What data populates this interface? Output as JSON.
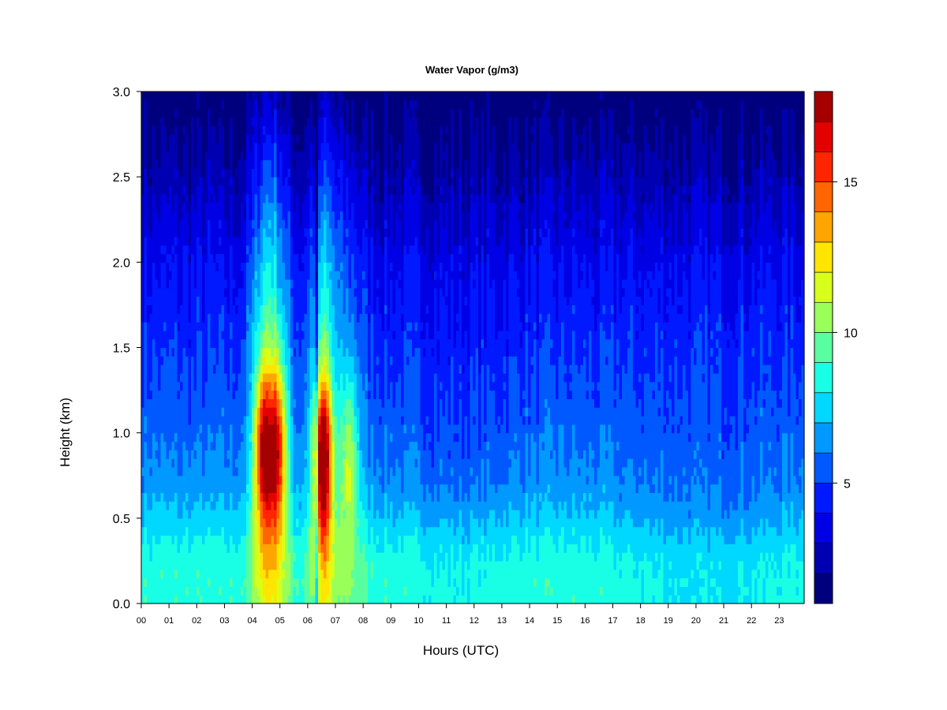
{
  "chart_data": {
    "type": "heatmap",
    "title": "Water Vapor (g/m3)",
    "xlabel": "Hours (UTC)",
    "ylabel": "Height (km)",
    "xlim": [
      0,
      23.9
    ],
    "ylim": [
      0,
      3.0
    ],
    "x_ticks": [
      0,
      1,
      2,
      3,
      4,
      5,
      6,
      7,
      8,
      9,
      10,
      11,
      12,
      13,
      14,
      15,
      16,
      17,
      18,
      19,
      20,
      21,
      22,
      23
    ],
    "x_tick_labels": [
      "00",
      "01",
      "02",
      "03",
      "04",
      "05",
      "06",
      "07",
      "08",
      "09",
      "10",
      "11",
      "12",
      "13",
      "14",
      "15",
      "16",
      "17",
      "18",
      "19",
      "20",
      "21",
      "22",
      "23"
    ],
    "y_ticks": [
      0.0,
      0.5,
      1.0,
      1.5,
      2.0,
      2.5,
      3.0
    ],
    "y_tick_labels": [
      "0.0",
      "0.5",
      "1.0",
      "1.5",
      "2.0",
      "2.5",
      "3.0"
    ],
    "colorbar": {
      "range": [
        1,
        18
      ],
      "ticks": [
        5,
        10,
        15
      ],
      "tick_labels": [
        "5",
        "10",
        "15"
      ],
      "colors": [
        "#00007f",
        "#0000b2",
        "#0000e5",
        "#0019ff",
        "#0059ff",
        "#0099ff",
        "#00d8ff",
        "#19ffe5",
        "#59ff9f",
        "#99ff59",
        "#d8ff19",
        "#ffe500",
        "#ffa500",
        "#ff6500",
        "#ff2500",
        "#e50000",
        "#a50000"
      ]
    },
    "hours": [
      0,
      0.5,
      1,
      1.5,
      2,
      2.5,
      3,
      3.5,
      4,
      4.25,
      4.5,
      4.75,
      5,
      5.25,
      5.5,
      6,
      6.25,
      6.4,
      6.6,
      6.8,
      7,
      7.25,
      7.5,
      7.75,
      8,
      8.5,
      9,
      9.5,
      10,
      10.5,
      11,
      11.5,
      12,
      12.5,
      13,
      13.5,
      14,
      14.5,
      15,
      15.5,
      16,
      16.5,
      17,
      17.5,
      18,
      18.5,
      19,
      19.5,
      20,
      20.5,
      21,
      21.5,
      22,
      22.5,
      23,
      23.5,
      23.9
    ],
    "heights": [
      0.0,
      0.1,
      0.2,
      0.3,
      0.4,
      0.5,
      0.6,
      0.7,
      0.8,
      0.9,
      1.0,
      1.1,
      1.2,
      1.3,
      1.4,
      1.5,
      1.6,
      1.7,
      1.8,
      1.9,
      2.0,
      2.1,
      2.2,
      2.3,
      2.4,
      2.5,
      2.6,
      2.7,
      2.8,
      2.9,
      3.0
    ],
    "features": [
      {
        "hour": 4.4,
        "height": 0.9,
        "peak": 14.5
      },
      {
        "hour": 4.9,
        "height": 0.9,
        "peak": 14.0
      },
      {
        "hour": 6.55,
        "height": 0.85,
        "peak": 16.5
      },
      {
        "hour": 7.5,
        "height": 0.85,
        "peak": 10.5
      }
    ]
  }
}
